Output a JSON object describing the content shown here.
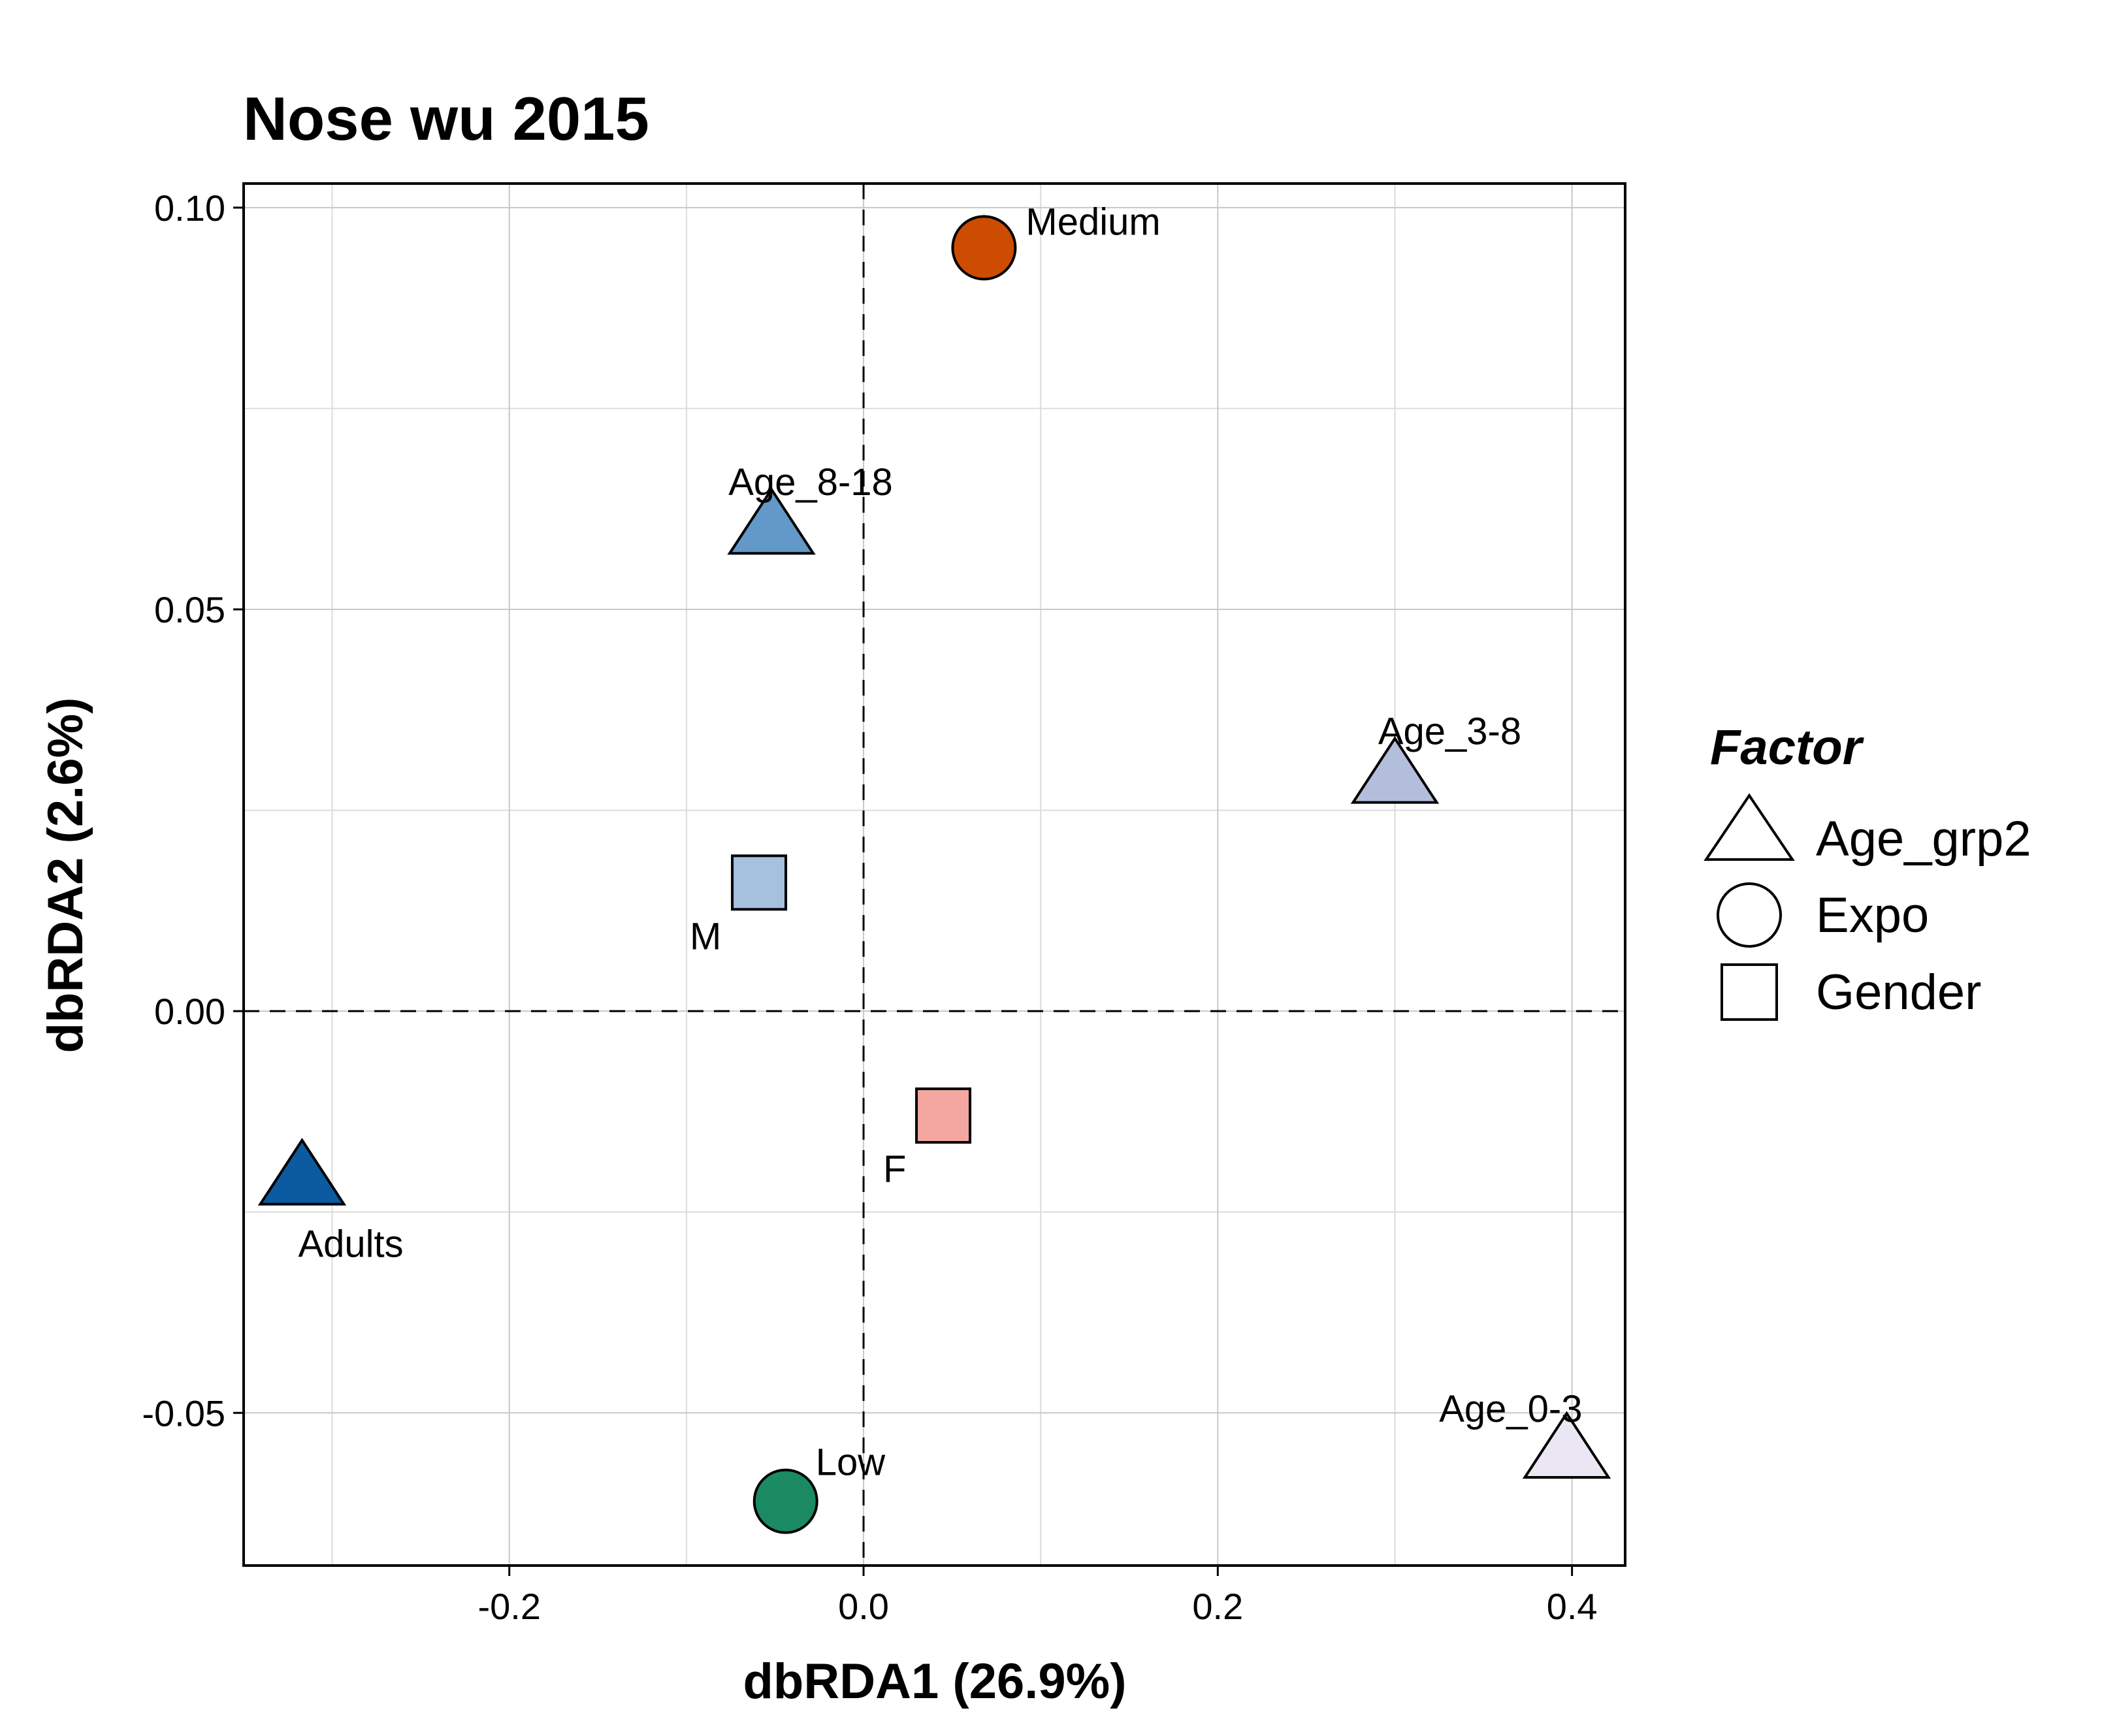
{
  "chart_data": {
    "type": "scatter",
    "title": "Nose wu 2015",
    "xlabel": "dbRDA1 (26.9%)",
    "ylabel": "dbRDA2 (2.6%)",
    "xlim": [
      -0.35,
      0.43
    ],
    "ylim": [
      -0.069,
      0.103
    ],
    "x_ticks": [
      -0.2,
      0.0,
      0.2,
      0.4
    ],
    "x_tick_labels": [
      "-0.2",
      "0.0",
      "0.2",
      "0.4"
    ],
    "y_ticks": [
      -0.05,
      0.0,
      0.05,
      0.1
    ],
    "y_tick_labels": [
      "-0.05",
      "0.00",
      "0.05",
      "0.10"
    ],
    "grid": true,
    "zero_lines": true,
    "legend": {
      "title": "Factor",
      "position": "right",
      "entries": [
        {
          "label": "Age_grp2",
          "shape": "triangle"
        },
        {
          "label": "Expo",
          "shape": "circle"
        },
        {
          "label": "Gender",
          "shape": "square"
        }
      ]
    },
    "points": [
      {
        "label": "Medium",
        "x": 0.068,
        "y": 0.095,
        "factor": "Expo",
        "shape": "circle",
        "color": "#cc4c02",
        "label_pos": "upper-right"
      },
      {
        "label": "Low",
        "x": -0.044,
        "y": -0.061,
        "factor": "Expo",
        "shape": "circle",
        "color": "#1b8a62",
        "label_pos": "upper-right"
      },
      {
        "label": "Age_8-18",
        "x": -0.052,
        "y": 0.06,
        "factor": "Age_grp2",
        "shape": "triangle",
        "color": "#6399c8",
        "label_pos": "above"
      },
      {
        "label": "Age_3-8",
        "x": 0.3,
        "y": 0.029,
        "factor": "Age_grp2",
        "shape": "triangle",
        "color": "#b3bedc",
        "label_pos": "above"
      },
      {
        "label": "Adults",
        "x": -0.317,
        "y": -0.021,
        "factor": "Age_grp2",
        "shape": "triangle",
        "color": "#0c5aa0",
        "label_pos": "below-right"
      },
      {
        "label": "Age_0-3",
        "x": 0.397,
        "y": -0.055,
        "factor": "Age_grp2",
        "shape": "triangle",
        "color": "#ebe6f4",
        "label_pos": "above-left"
      },
      {
        "label": "M",
        "x": -0.059,
        "y": 0.016,
        "factor": "Gender",
        "shape": "square",
        "color": "#a6c1de",
        "label_pos": "below-left"
      },
      {
        "label": "F",
        "x": 0.045,
        "y": -0.013,
        "factor": "Gender",
        "shape": "square",
        "color": "#f4a6a1",
        "label_pos": "below-left"
      }
    ]
  }
}
